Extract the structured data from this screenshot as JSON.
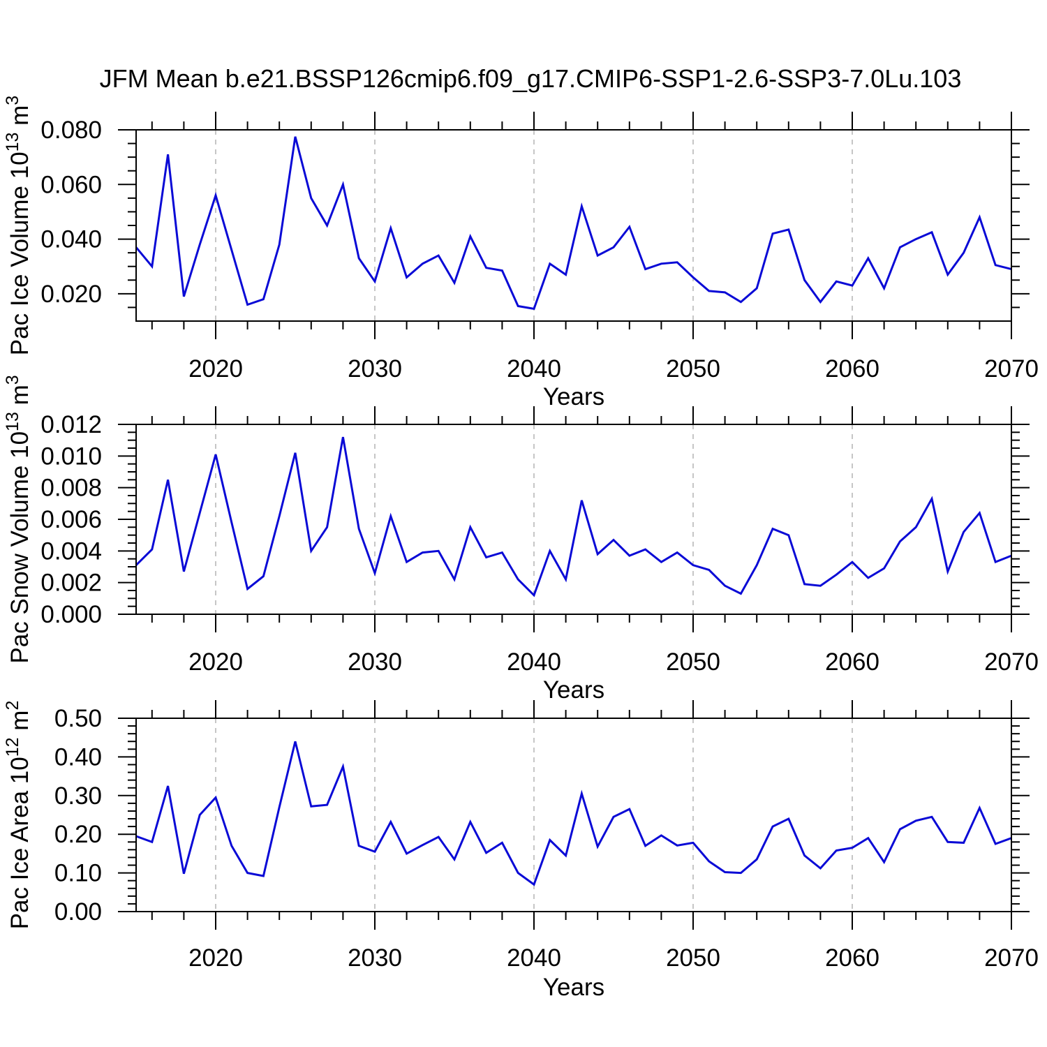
{
  "title": "JFM Mean b.e21.BSSP126cmip6.f09_g17.CMIP6-SSP1-2.6-SSP3-7.0Lu.103",
  "colors": {
    "line": "#0a0ad6",
    "axis": "#000000",
    "grid": "#b3b3b3",
    "background": "#ffffff"
  },
  "x_axis": {
    "label": "Years",
    "range": [
      2015,
      2070
    ],
    "major_tick_years": [
      2020,
      2030,
      2040,
      2050,
      2060,
      2070
    ],
    "major_tick_labels": [
      "2020",
      "2030",
      "2040",
      "2050",
      "2060",
      "2070"
    ],
    "minor_tick_start": 2016,
    "minor_tick_step": 2,
    "grid_years": [
      2020,
      2030,
      2040,
      2050,
      2060
    ]
  },
  "chart_data": [
    {
      "panel": "pac-ice-volume",
      "type": "line",
      "ylabel": {
        "text": "Pac Ice Volume",
        "scale": "10",
        "scale_exp": "13",
        "unit": "m",
        "unit_exp": "3"
      },
      "ylim": [
        0.01,
        0.08
      ],
      "yticks": {
        "values": [
          0.02,
          0.04,
          0.06,
          0.08
        ],
        "labels": [
          "0.020",
          "0.040",
          "0.060",
          "0.080"
        ]
      },
      "y_minor_step": 0.005,
      "x_start": 2015,
      "x_end": 2070,
      "x_step": 1,
      "values": [
        0.037,
        0.03,
        0.071,
        0.019,
        0.038,
        0.056,
        0.036,
        0.016,
        0.018,
        0.038,
        0.0775,
        0.055,
        0.045,
        0.06,
        0.033,
        0.0245,
        0.044,
        0.026,
        0.031,
        0.034,
        0.024,
        0.041,
        0.0295,
        0.0285,
        0.0155,
        0.0145,
        0.031,
        0.027,
        0.052,
        0.034,
        0.037,
        0.0445,
        0.029,
        0.031,
        0.0315,
        0.026,
        0.021,
        0.0205,
        0.017,
        0.022,
        0.042,
        0.0435,
        0.025,
        0.017,
        0.0245,
        0.023,
        0.033,
        0.022,
        0.037,
        0.04,
        0.0425,
        0.027,
        0.035,
        0.048,
        0.0305,
        0.029
      ]
    },
    {
      "panel": "pac-snow-volume",
      "type": "line",
      "ylabel": {
        "text": "Pac Snow Volume",
        "scale": "10",
        "scale_exp": "13",
        "unit": "m",
        "unit_exp": "3"
      },
      "ylim": [
        0.0,
        0.012
      ],
      "yticks": {
        "values": [
          0.0,
          0.002,
          0.004,
          0.006,
          0.008,
          0.01,
          0.012
        ],
        "labels": [
          "0.000",
          "0.002",
          "0.004",
          "0.006",
          "0.008",
          "0.010",
          "0.012"
        ]
      },
      "y_minor_step": 0.0005,
      "x_start": 2015,
      "x_end": 2070,
      "x_step": 1,
      "values": [
        0.0031,
        0.0041,
        0.0085,
        0.0027,
        0.0064,
        0.0101,
        0.0058,
        0.0016,
        0.0024,
        0.0062,
        0.0102,
        0.004,
        0.0055,
        0.0112,
        0.0054,
        0.0026,
        0.0062,
        0.0033,
        0.0039,
        0.004,
        0.0022,
        0.0055,
        0.0036,
        0.0039,
        0.0022,
        0.0012,
        0.004,
        0.0022,
        0.0072,
        0.0038,
        0.0047,
        0.0037,
        0.0041,
        0.0033,
        0.0039,
        0.0031,
        0.0028,
        0.0018,
        0.0013,
        0.0031,
        0.0054,
        0.005,
        0.0019,
        0.0018,
        0.0025,
        0.0033,
        0.0023,
        0.0029,
        0.0046,
        0.0055,
        0.0073,
        0.0027,
        0.0052,
        0.0064,
        0.0033,
        0.0037
      ]
    },
    {
      "panel": "pac-ice-area",
      "type": "line",
      "ylabel": {
        "text": "Pac Ice Area",
        "scale": "10",
        "scale_exp": "12",
        "unit": "m",
        "unit_exp": "2"
      },
      "ylim": [
        0.0,
        0.5
      ],
      "yticks": {
        "values": [
          0.0,
          0.1,
          0.2,
          0.3,
          0.4,
          0.5
        ],
        "labels": [
          "0.00",
          "0.10",
          "0.20",
          "0.30",
          "0.40",
          "0.50"
        ]
      },
      "y_minor_step": 0.02,
      "x_start": 2015,
      "x_end": 2070,
      "x_step": 1,
      "values": [
        0.195,
        0.18,
        0.325,
        0.098,
        0.25,
        0.295,
        0.17,
        0.1,
        0.092,
        0.27,
        0.44,
        0.272,
        0.276,
        0.375,
        0.17,
        0.155,
        0.232,
        0.15,
        0.172,
        0.193,
        0.135,
        0.232,
        0.152,
        0.178,
        0.1,
        0.07,
        0.185,
        0.145,
        0.305,
        0.168,
        0.245,
        0.265,
        0.17,
        0.197,
        0.171,
        0.178,
        0.13,
        0.102,
        0.1,
        0.135,
        0.22,
        0.24,
        0.145,
        0.112,
        0.158,
        0.165,
        0.19,
        0.128,
        0.213,
        0.235,
        0.245,
        0.18,
        0.178,
        0.268,
        0.175,
        0.19
      ]
    }
  ]
}
